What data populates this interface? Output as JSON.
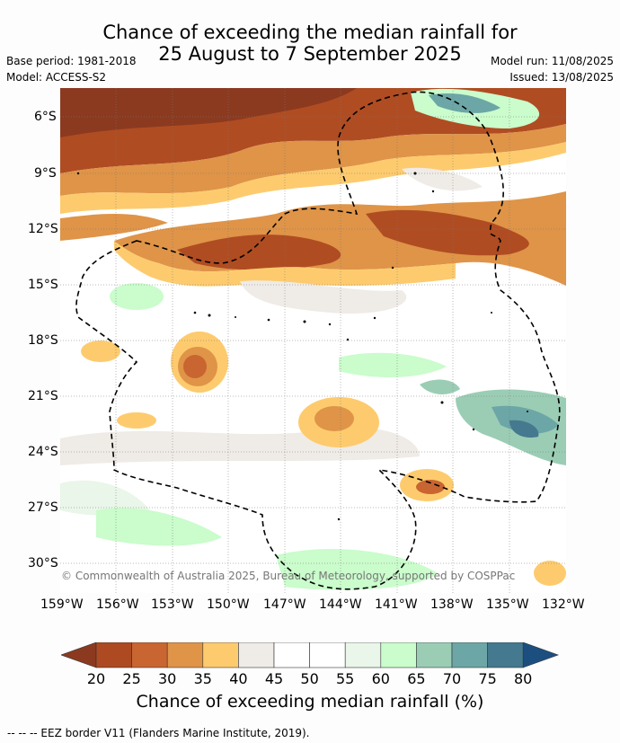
{
  "title_line1": "Chance of exceeding the median rainfall for",
  "title_line2": "25 August to 7 September 2025",
  "base_period": "Base period: 1981-2018",
  "model": "Model: ACCESS-S2",
  "model_run": "Model run: 11/08/2025",
  "issued": "Issued: 13/08/2025",
  "copyright": "© Commonwealth of Australia 2025, Bureau of Meteorology, supported by COSPPac",
  "lat_ticks": [
    "6°S",
    "9°S",
    "12°S",
    "15°S",
    "18°S",
    "21°S",
    "24°S",
    "27°S",
    "30°S"
  ],
  "lon_ticks": [
    "159°W",
    "156°W",
    "153°W",
    "150°W",
    "147°W",
    "144°W",
    "141°W",
    "138°W",
    "135°W",
    "132°W"
  ],
  "colorbar": {
    "labels": [
      "20",
      "25",
      "30",
      "35",
      "40",
      "45",
      "50",
      "55",
      "60",
      "65",
      "70",
      "75",
      "80"
    ],
    "colors": [
      "#8b3a20",
      "#ad4a22",
      "#c96530",
      "#df9448",
      "#fdcb6e",
      "#efebe6",
      "#ffffff",
      "#ffffff",
      "#e9f6e9",
      "#cafccc",
      "#9bcdb5",
      "#6ca6a6",
      "#44798f",
      "#1c4f80"
    ],
    "title": "Chance of exceeding median rainfall (%)"
  },
  "footer": "--  --  -- EEZ border V11 (Flanders Marine Institute, 2019)."
}
